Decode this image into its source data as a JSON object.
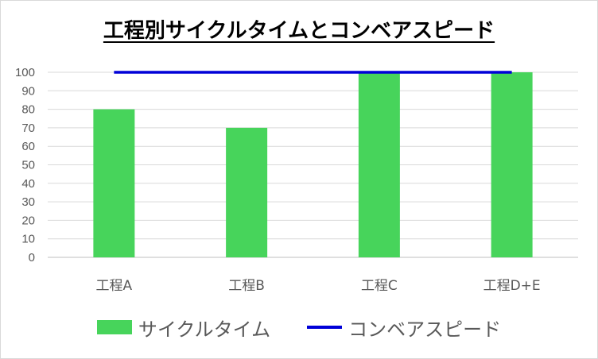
{
  "chart_data": {
    "type": "bar",
    "title": "工程別サイクルタイムとコンベアスピード",
    "categories": [
      "工程A",
      "工程B",
      "工程C",
      "工程D+E"
    ],
    "series": [
      {
        "name": "サイクルタイム",
        "kind": "bar",
        "color": "#47d45b",
        "values": [
          80,
          70,
          100,
          100
        ]
      },
      {
        "name": "コンベアスピード",
        "kind": "line",
        "color": "#0000d8",
        "values": [
          100,
          100,
          100,
          100
        ]
      }
    ],
    "y_ticks": [
      0,
      10,
      20,
      30,
      40,
      50,
      60,
      70,
      80,
      90,
      100
    ],
    "ylim": [
      0,
      100
    ],
    "grid": true,
    "legend_position": "bottom"
  }
}
